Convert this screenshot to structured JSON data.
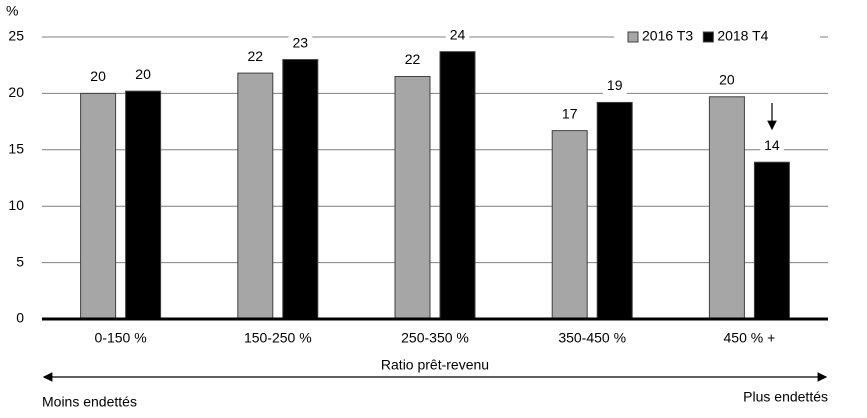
{
  "chart_data": {
    "type": "bar",
    "y_label": "%",
    "x_label": "Ratio prêt-revenu",
    "annotations": [
      "Moins endettés",
      "Plus endettés"
    ],
    "categories": [
      "0-150 %",
      "150-250 %",
      "250-350 %",
      "350-450 %",
      "450 % +"
    ],
    "series": [
      {
        "name": "2016 T3",
        "color": "#a6a6a6",
        "values": [
          20.0,
          21.8,
          21.5,
          16.7,
          19.7
        ],
        "value_labels": [
          "20",
          "22",
          "22",
          "17",
          "20"
        ]
      },
      {
        "name": "2018 T4",
        "color": "#000000",
        "values": [
          20.2,
          23.0,
          23.7,
          19.2,
          13.9
        ],
        "value_labels": [
          "20",
          "23",
          "24",
          "19",
          "14"
        ]
      }
    ],
    "ylim": [
      0,
      25
    ],
    "yticks": [
      0,
      5,
      10,
      15,
      20,
      25
    ],
    "grid": true,
    "legend": "top-right"
  }
}
